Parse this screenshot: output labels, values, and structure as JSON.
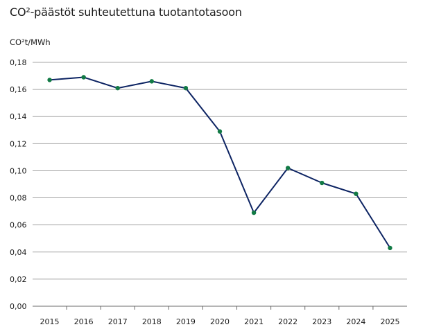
{
  "chart_data": {
    "type": "line",
    "title": "CO²-päästöt suhteutettuna tuotantotasoon",
    "ylabel": "CO²t/MWh",
    "xlabel": "",
    "categories": [
      "2015",
      "2016",
      "2017",
      "2018",
      "2019",
      "2020",
      "2021",
      "2022",
      "2023",
      "2024",
      "2025"
    ],
    "series": [
      {
        "values": [
          0.167,
          0.169,
          0.161,
          0.166,
          0.161,
          0.129,
          0.069,
          0.102,
          0.091,
          0.083,
          0.043
        ]
      }
    ],
    "ylim": [
      0,
      0.18
    ],
    "yticks": [
      "0,00",
      "0,02",
      "0,04",
      "0,06",
      "0,08",
      "0,10",
      "0,12",
      "0,14",
      "0,16",
      "0,18"
    ],
    "grid": true,
    "line_color": "#0d2463",
    "marker_color": "#127a45",
    "grid_color": "#a6a6a6"
  }
}
